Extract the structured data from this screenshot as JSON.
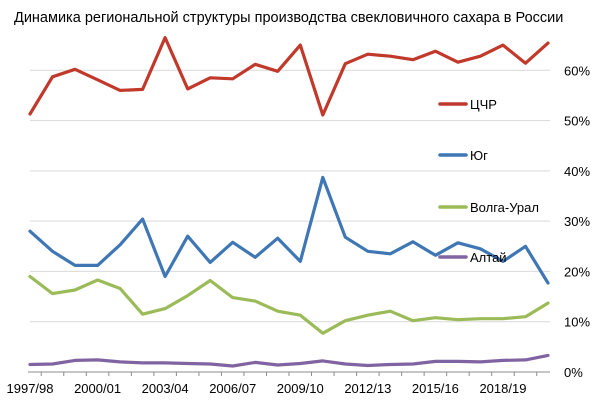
{
  "chart_data": {
    "type": "line",
    "title": "Динамика региональной структуры производства свекловичного сахара в России",
    "xlabel": "",
    "ylabel": "",
    "x": [
      "1997/98",
      "1998/99",
      "1999/00",
      "2000/01",
      "2001/02",
      "2002/03",
      "2003/04",
      "2004/05",
      "2005/06",
      "2006/07",
      "2007/08",
      "2008/09",
      "2009/10",
      "2010/11",
      "2011/12",
      "2012/13",
      "2013/14",
      "2014/15",
      "2015/16",
      "2016/17",
      "2017/18",
      "2018/19",
      "2019/20",
      "2020/21"
    ],
    "x_tick_labels": [
      "1997/98",
      "2000/01",
      "2003/04",
      "2006/07",
      "2009/10",
      "2012/13",
      "2015/16",
      "2018/19"
    ],
    "x_tick_every": 3,
    "ylim": [
      0,
      70
    ],
    "y_ticks": [
      0,
      10,
      20,
      30,
      40,
      50,
      60
    ],
    "y_tick_labels": [
      "0%",
      "10%",
      "20%",
      "30%",
      "40%",
      "50%",
      "60%"
    ],
    "y_axis_position": "right",
    "grid": true,
    "legend_position": "right",
    "series": [
      {
        "name": "ЦЧР",
        "color": "#c0392b",
        "values": [
          51.3,
          58.7,
          60.2,
          58.1,
          56.0,
          56.2,
          66.5,
          56.3,
          58.5,
          58.3,
          61.2,
          59.8,
          65.0,
          51.1,
          61.3,
          63.2,
          62.8,
          62.1,
          63.8,
          61.6,
          62.8,
          65.0,
          61.4,
          65.4
        ]
      },
      {
        "name": "Юг",
        "color": "#3f77b5",
        "values": [
          28.0,
          24.0,
          21.2,
          21.2,
          25.3,
          30.4,
          19.0,
          27.0,
          21.8,
          25.8,
          22.8,
          26.6,
          22.0,
          38.7,
          26.8,
          24.0,
          23.5,
          25.9,
          23.2,
          25.7,
          24.5,
          22.0,
          25.0,
          17.7
        ]
      },
      {
        "name": "Волга-Урал",
        "color": "#9bbb59",
        "values": [
          19.0,
          15.6,
          16.3,
          18.3,
          16.6,
          11.5,
          12.6,
          15.2,
          18.2,
          14.8,
          14.1,
          12.1,
          11.3,
          7.7,
          10.2,
          11.3,
          12.1,
          10.2,
          10.8,
          10.4,
          10.6,
          10.6,
          11.0,
          13.7
        ]
      },
      {
        "name": "Алтай",
        "color": "#8064a2",
        "values": [
          1.5,
          1.6,
          2.3,
          2.4,
          2.0,
          1.8,
          1.8,
          1.7,
          1.6,
          1.2,
          1.9,
          1.4,
          1.7,
          2.2,
          1.6,
          1.3,
          1.5,
          1.6,
          2.1,
          2.1,
          2.0,
          2.3,
          2.4,
          3.3
        ]
      }
    ]
  }
}
